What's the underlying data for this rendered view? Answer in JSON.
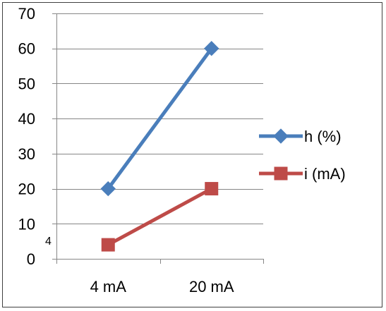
{
  "chart_data": {
    "type": "line",
    "categories": [
      "4 mA",
      "20 mA"
    ],
    "series": [
      {
        "name": "h (%)",
        "values": [
          20,
          60
        ],
        "color": "#4A7EBB",
        "marker": "diamond"
      },
      {
        "name": "i (mA)",
        "values": [
          4,
          20
        ],
        "color": "#BE4B48",
        "marker": "square"
      }
    ],
    "y_ticks": [
      "0",
      "10",
      "20",
      "30",
      "40",
      "50",
      "60",
      "70"
    ],
    "ylim": [
      0,
      70
    ],
    "grid": true,
    "legend": "right",
    "annotations": [
      {
        "text": "4"
      }
    ]
  }
}
